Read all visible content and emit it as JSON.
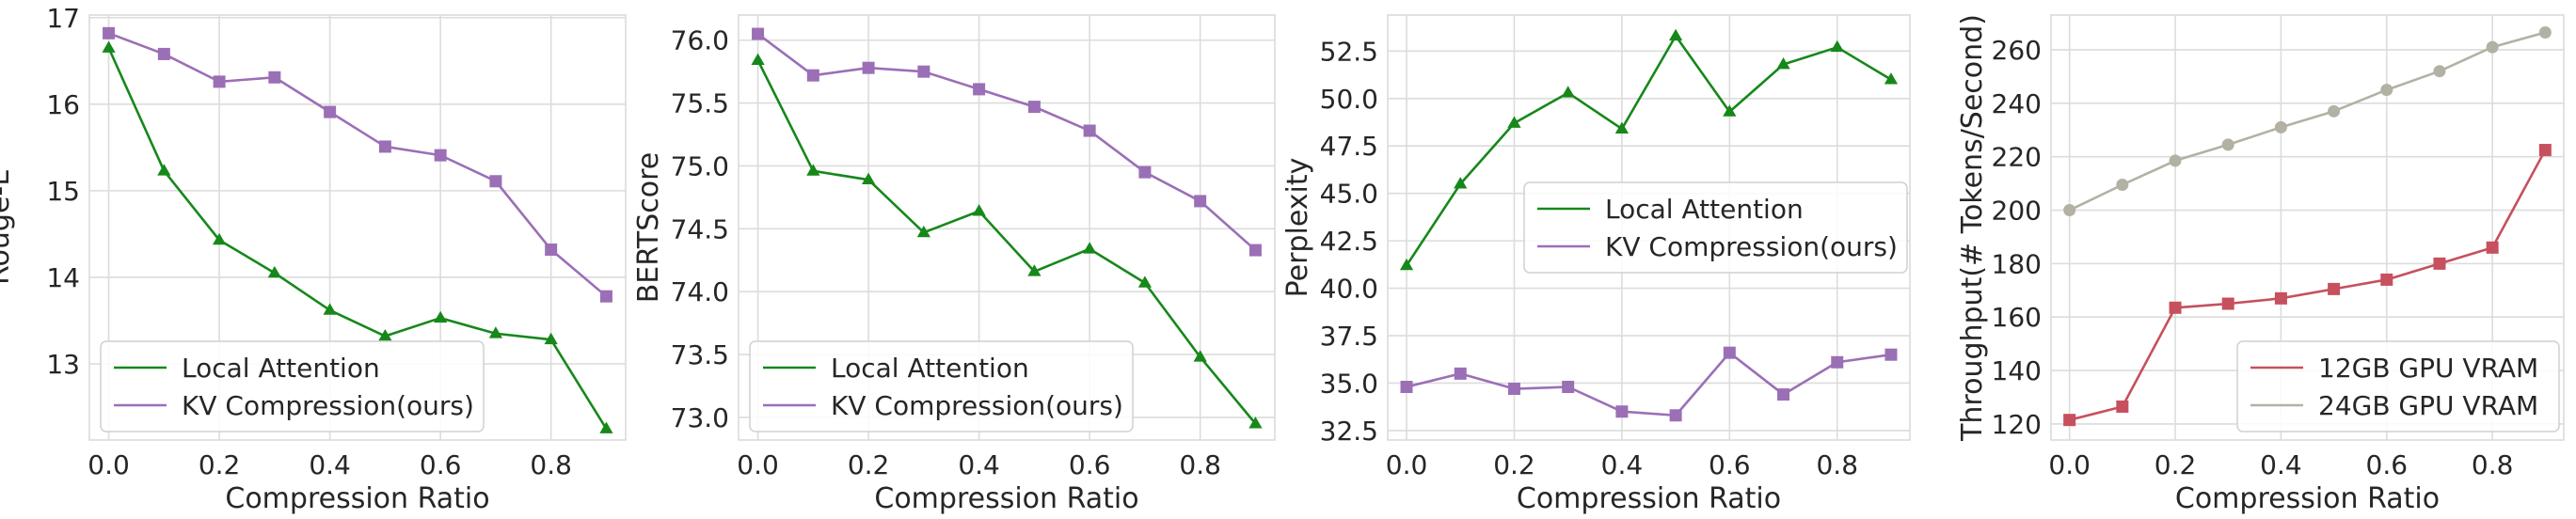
{
  "colors": {
    "local_attention": "#16881a",
    "kv_compression": "#9b6fb6",
    "gpu_12gb": "#c6505e",
    "gpu_24gb": "#b3b1a3",
    "grid": "#dcdcdc"
  },
  "chart_data": [
    {
      "type": "line",
      "title": "",
      "xlabel": "Compression Ratio",
      "ylabel": "Rouge-L",
      "x": [
        0.0,
        0.1,
        0.2,
        0.3,
        0.4,
        0.5,
        0.6,
        0.7,
        0.8,
        0.9
      ],
      "xlim": [
        -0.035,
        0.935
      ],
      "ylim": [
        12.12,
        17.03
      ],
      "xticks": [
        0.0,
        0.2,
        0.4,
        0.6,
        0.8
      ],
      "xtick_labels": [
        "0.0",
        "0.2",
        "0.4",
        "0.6",
        "0.8"
      ],
      "yticks": [
        13,
        14,
        15,
        16,
        17
      ],
      "ytick_labels": [
        "13",
        "14",
        "15",
        "16",
        "17"
      ],
      "grid": true,
      "legend_position": "lower-left",
      "series": [
        {
          "name": "Local Attention",
          "color_key": "local_attention",
          "marker": "triangle",
          "values": [
            16.65,
            15.23,
            14.43,
            14.05,
            13.62,
            13.32,
            13.53,
            13.35,
            13.28,
            12.25
          ]
        },
        {
          "name": "KV Compression(ours)",
          "color_key": "kv_compression",
          "marker": "square",
          "values": [
            16.82,
            16.58,
            16.26,
            16.31,
            15.91,
            15.51,
            15.41,
            15.11,
            14.32,
            13.78
          ]
        }
      ]
    },
    {
      "type": "line",
      "title": "",
      "xlabel": "Compression Ratio",
      "ylabel": "BERTScore",
      "x": [
        0.0,
        0.1,
        0.2,
        0.3,
        0.4,
        0.5,
        0.6,
        0.7,
        0.8,
        0.9
      ],
      "xlim": [
        -0.035,
        0.935
      ],
      "ylim": [
        72.82,
        76.2
      ],
      "xticks": [
        0.0,
        0.2,
        0.4,
        0.6,
        0.8
      ],
      "xtick_labels": [
        "0.0",
        "0.2",
        "0.4",
        "0.6",
        "0.8"
      ],
      "yticks": [
        73.0,
        73.5,
        74.0,
        74.5,
        75.0,
        75.5,
        76.0
      ],
      "ytick_labels": [
        "73.0",
        "73.5",
        "74.0",
        "74.5",
        "75.0",
        "75.5",
        "76.0"
      ],
      "grid": true,
      "legend_position": "lower-left",
      "series": [
        {
          "name": "Local Attention",
          "color_key": "local_attention",
          "marker": "triangle",
          "values": [
            75.84,
            74.96,
            74.89,
            74.47,
            74.64,
            74.16,
            74.34,
            74.07,
            73.48,
            72.95
          ]
        },
        {
          "name": "KV Compression(ours)",
          "color_key": "kv_compression",
          "marker": "square",
          "values": [
            76.05,
            75.72,
            75.78,
            75.75,
            75.61,
            75.47,
            75.28,
            74.95,
            74.72,
            74.33
          ]
        }
      ]
    },
    {
      "type": "line",
      "title": "",
      "xlabel": "Compression Ratio",
      "ylabel": "Perplexity",
      "x": [
        0.0,
        0.1,
        0.2,
        0.3,
        0.4,
        0.5,
        0.6,
        0.7,
        0.8,
        0.9
      ],
      "xlim": [
        -0.035,
        0.935
      ],
      "ylim": [
        32.0,
        54.4
      ],
      "xticks": [
        0.0,
        0.2,
        0.4,
        0.6,
        0.8
      ],
      "xtick_labels": [
        "0.0",
        "0.2",
        "0.4",
        "0.6",
        "0.8"
      ],
      "yticks": [
        32.5,
        35.0,
        37.5,
        40.0,
        42.5,
        45.0,
        47.5,
        50.0,
        52.5
      ],
      "ytick_labels": [
        "32.5",
        "35.0",
        "37.5",
        "40.0",
        "42.5",
        "45.0",
        "47.5",
        "50.0",
        "52.5"
      ],
      "grid": true,
      "legend_position": "center-right",
      "series": [
        {
          "name": "Local Attention",
          "color_key": "local_attention",
          "marker": "triangle",
          "values": [
            41.2,
            45.5,
            48.7,
            50.3,
            48.4,
            53.3,
            49.3,
            51.8,
            52.7,
            51.0
          ]
        },
        {
          "name": "KV Compression(ours)",
          "color_key": "kv_compression",
          "marker": "square",
          "values": [
            34.8,
            35.5,
            34.7,
            34.8,
            33.5,
            33.3,
            36.6,
            34.4,
            36.1,
            36.5
          ]
        }
      ]
    },
    {
      "type": "line",
      "title": "",
      "xlabel": "Compression Ratio",
      "ylabel": "Throughput(# Tokens/Second)",
      "x": [
        0.0,
        0.1,
        0.2,
        0.3,
        0.4,
        0.5,
        0.6,
        0.7,
        0.8,
        0.9
      ],
      "xlim": [
        -0.035,
        0.935
      ],
      "ylim": [
        114.0,
        273.0
      ],
      "xticks": [
        0.0,
        0.2,
        0.4,
        0.6,
        0.8
      ],
      "xtick_labels": [
        "0.0",
        "0.2",
        "0.4",
        "0.6",
        "0.8"
      ],
      "yticks": [
        120,
        140,
        160,
        180,
        200,
        220,
        240,
        260
      ],
      "ytick_labels": [
        "120",
        "140",
        "160",
        "180",
        "200",
        "220",
        "240",
        "260"
      ],
      "grid": true,
      "legend_position": "lower-right",
      "series": [
        {
          "name": "12GB GPU VRAM",
          "color_key": "gpu_12gb",
          "marker": "square",
          "values": [
            121.5,
            126.5,
            163.5,
            165.0,
            167.0,
            170.5,
            174.0,
            180.0,
            186.0,
            222.5
          ]
        },
        {
          "name": "24GB GPU VRAM",
          "color_key": "gpu_24gb",
          "marker": "circle",
          "values": [
            200.0,
            209.5,
            218.5,
            224.5,
            231.0,
            237.0,
            245.0,
            252.0,
            261.0,
            266.5
          ]
        }
      ]
    }
  ]
}
